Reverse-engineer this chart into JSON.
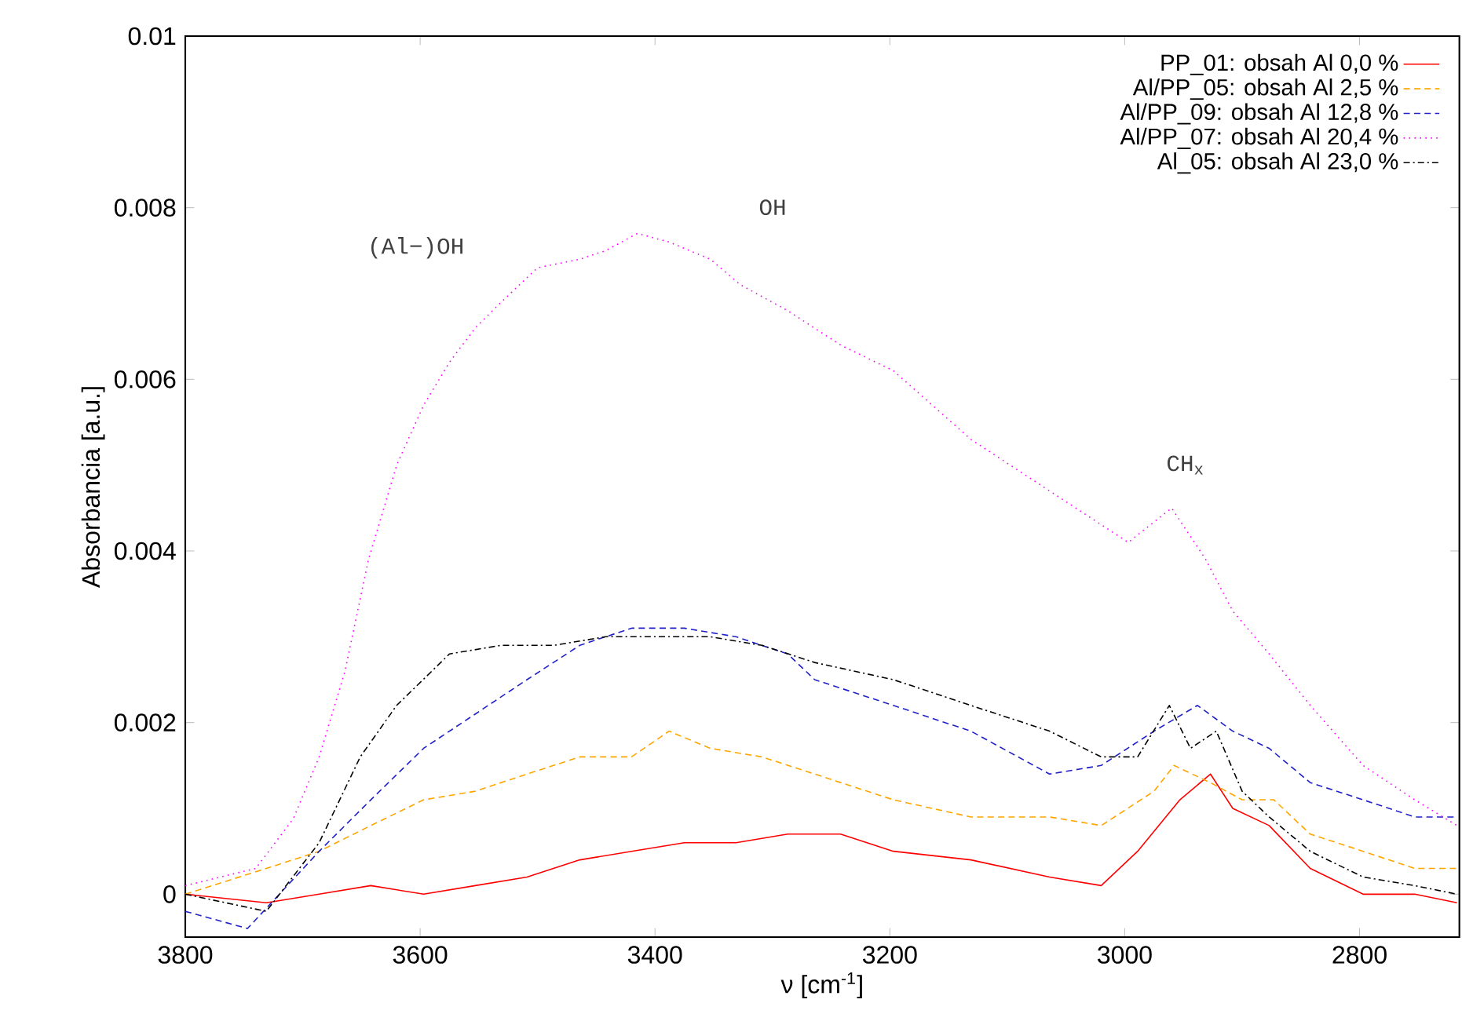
{
  "chart_data": {
    "type": "line",
    "xlabel": "ν [cm$^{-1}$]",
    "ylabel": "Absorbancia [a.u.]",
    "xlim": [
      3800,
      2715
    ],
    "xticks": [
      3800,
      3600,
      3400,
      3200,
      3000,
      2800
    ],
    "ylim": [
      -0.0005,
      0.01
    ],
    "yticks": [
      0,
      0.002,
      0.004,
      0.006,
      0.008,
      0.01
    ],
    "legend": "top right",
    "marker": "none",
    "annotations": [
      "(Al−)OH",
      "OH",
      "CH$_{x}$"
    ],
    "series": [
      {
        "name": "PP_01: obsah Al 0,0 %",
        "color": "#ff0000",
        "line_style": "solid",
        "x": [
          3800,
          3731,
          3686,
          3642,
          3597,
          3553,
          3509,
          3464,
          3420,
          3375,
          3331,
          3287,
          3242,
          3197,
          3131,
          3064,
          3020,
          2989,
          2953,
          2927,
          2908,
          2877,
          2842,
          2797,
          2753,
          2717
        ],
        "values": [
          0.0,
          -0.0001,
          0.0,
          0.0001,
          0.0,
          0.0001,
          0.0002,
          0.0004,
          0.0005,
          0.0006,
          0.0006,
          0.0007,
          0.0007,
          0.0005,
          0.0004,
          0.0002,
          0.0001,
          0.0005,
          0.0011,
          0.0014,
          0.001,
          0.0008,
          0.0003,
          0.0,
          0.0,
          -0.0001
        ]
      },
      {
        "name": "Al/PP_05: obsah Al 2,5 %",
        "color": "#ffa500",
        "line_style": "dashed",
        "x": [
          3800,
          3731,
          3686,
          3642,
          3597,
          3553,
          3509,
          3464,
          3420,
          3388,
          3353,
          3309,
          3264,
          3197,
          3131,
          3064,
          3020,
          2975,
          2958,
          2927,
          2900,
          2873,
          2842,
          2797,
          2753,
          2717
        ],
        "values": [
          0.0,
          0.0003,
          0.0005,
          0.0008,
          0.0011,
          0.0012,
          0.0014,
          0.0016,
          0.0016,
          0.0019,
          0.0017,
          0.0016,
          0.0014,
          0.0011,
          0.0009,
          0.0009,
          0.0008,
          0.0012,
          0.0015,
          0.0013,
          0.0011,
          0.0011,
          0.0007,
          0.0005,
          0.0003,
          0.0003
        ]
      },
      {
        "name": "Al/PP_09: obsah Al 12,8 %",
        "color": "#2020c8",
        "line_style": "dashed",
        "x": [
          3800,
          3747,
          3686,
          3642,
          3597,
          3553,
          3509,
          3464,
          3420,
          3375,
          3331,
          3287,
          3264,
          3197,
          3131,
          3064,
          3020,
          2975,
          2938,
          2908,
          2877,
          2842,
          2797,
          2753,
          2717
        ],
        "values": [
          -0.0002,
          -0.0004,
          0.0005,
          0.0011,
          0.0017,
          0.0021,
          0.0025,
          0.0029,
          0.0031,
          0.0031,
          0.003,
          0.0028,
          0.0025,
          0.0022,
          0.0019,
          0.0014,
          0.0015,
          0.0019,
          0.0022,
          0.0019,
          0.0017,
          0.0013,
          0.0011,
          0.0009,
          0.0009
        ]
      },
      {
        "name": "Al/PP_07: obsah Al 20,4 %",
        "color": "#ff00ff",
        "line_style": "dotted",
        "x": [
          3800,
          3740,
          3708,
          3686,
          3664,
          3644,
          3620,
          3597,
          3575,
          3553,
          3531,
          3500,
          3464,
          3442,
          3415,
          3388,
          3353,
          3327,
          3287,
          3242,
          3197,
          3131,
          3064,
          2997,
          2960,
          2931,
          2908,
          2877,
          2842,
          2797,
          2753,
          2717
        ],
        "values": [
          0.0001,
          0.0003,
          0.00088,
          0.0016,
          0.0026,
          0.0039,
          0.005,
          0.0057,
          0.0062,
          0.0066,
          0.0069,
          0.0073,
          0.0074,
          0.0075,
          0.0077,
          0.0076,
          0.0074,
          0.0071,
          0.0068,
          0.0064,
          0.0061,
          0.0053,
          0.0047,
          0.0041,
          0.0045,
          0.0039,
          0.0033,
          0.0028,
          0.0022,
          0.0015,
          0.0011,
          0.0008
        ]
      },
      {
        "name": "Al_05: obsah Al 23,0 %",
        "color": "#000000",
        "line_style": "dashdot",
        "x": [
          3800,
          3731,
          3686,
          3651,
          3620,
          3575,
          3531,
          3486,
          3442,
          3397,
          3353,
          3309,
          3264,
          3197,
          3131,
          3064,
          3020,
          2989,
          2962,
          2944,
          2922,
          2900,
          2877,
          2842,
          2797,
          2753,
          2717
        ],
        "values": [
          0.0,
          -0.0002,
          0.0006,
          0.0016,
          0.0022,
          0.0028,
          0.0029,
          0.0029,
          0.003,
          0.003,
          0.003,
          0.0029,
          0.0027,
          0.0025,
          0.0022,
          0.0019,
          0.0016,
          0.0016,
          0.0022,
          0.0017,
          0.0019,
          0.0012,
          0.0009,
          0.0005,
          0.0002,
          0.0001,
          0.0
        ]
      }
    ]
  }
}
